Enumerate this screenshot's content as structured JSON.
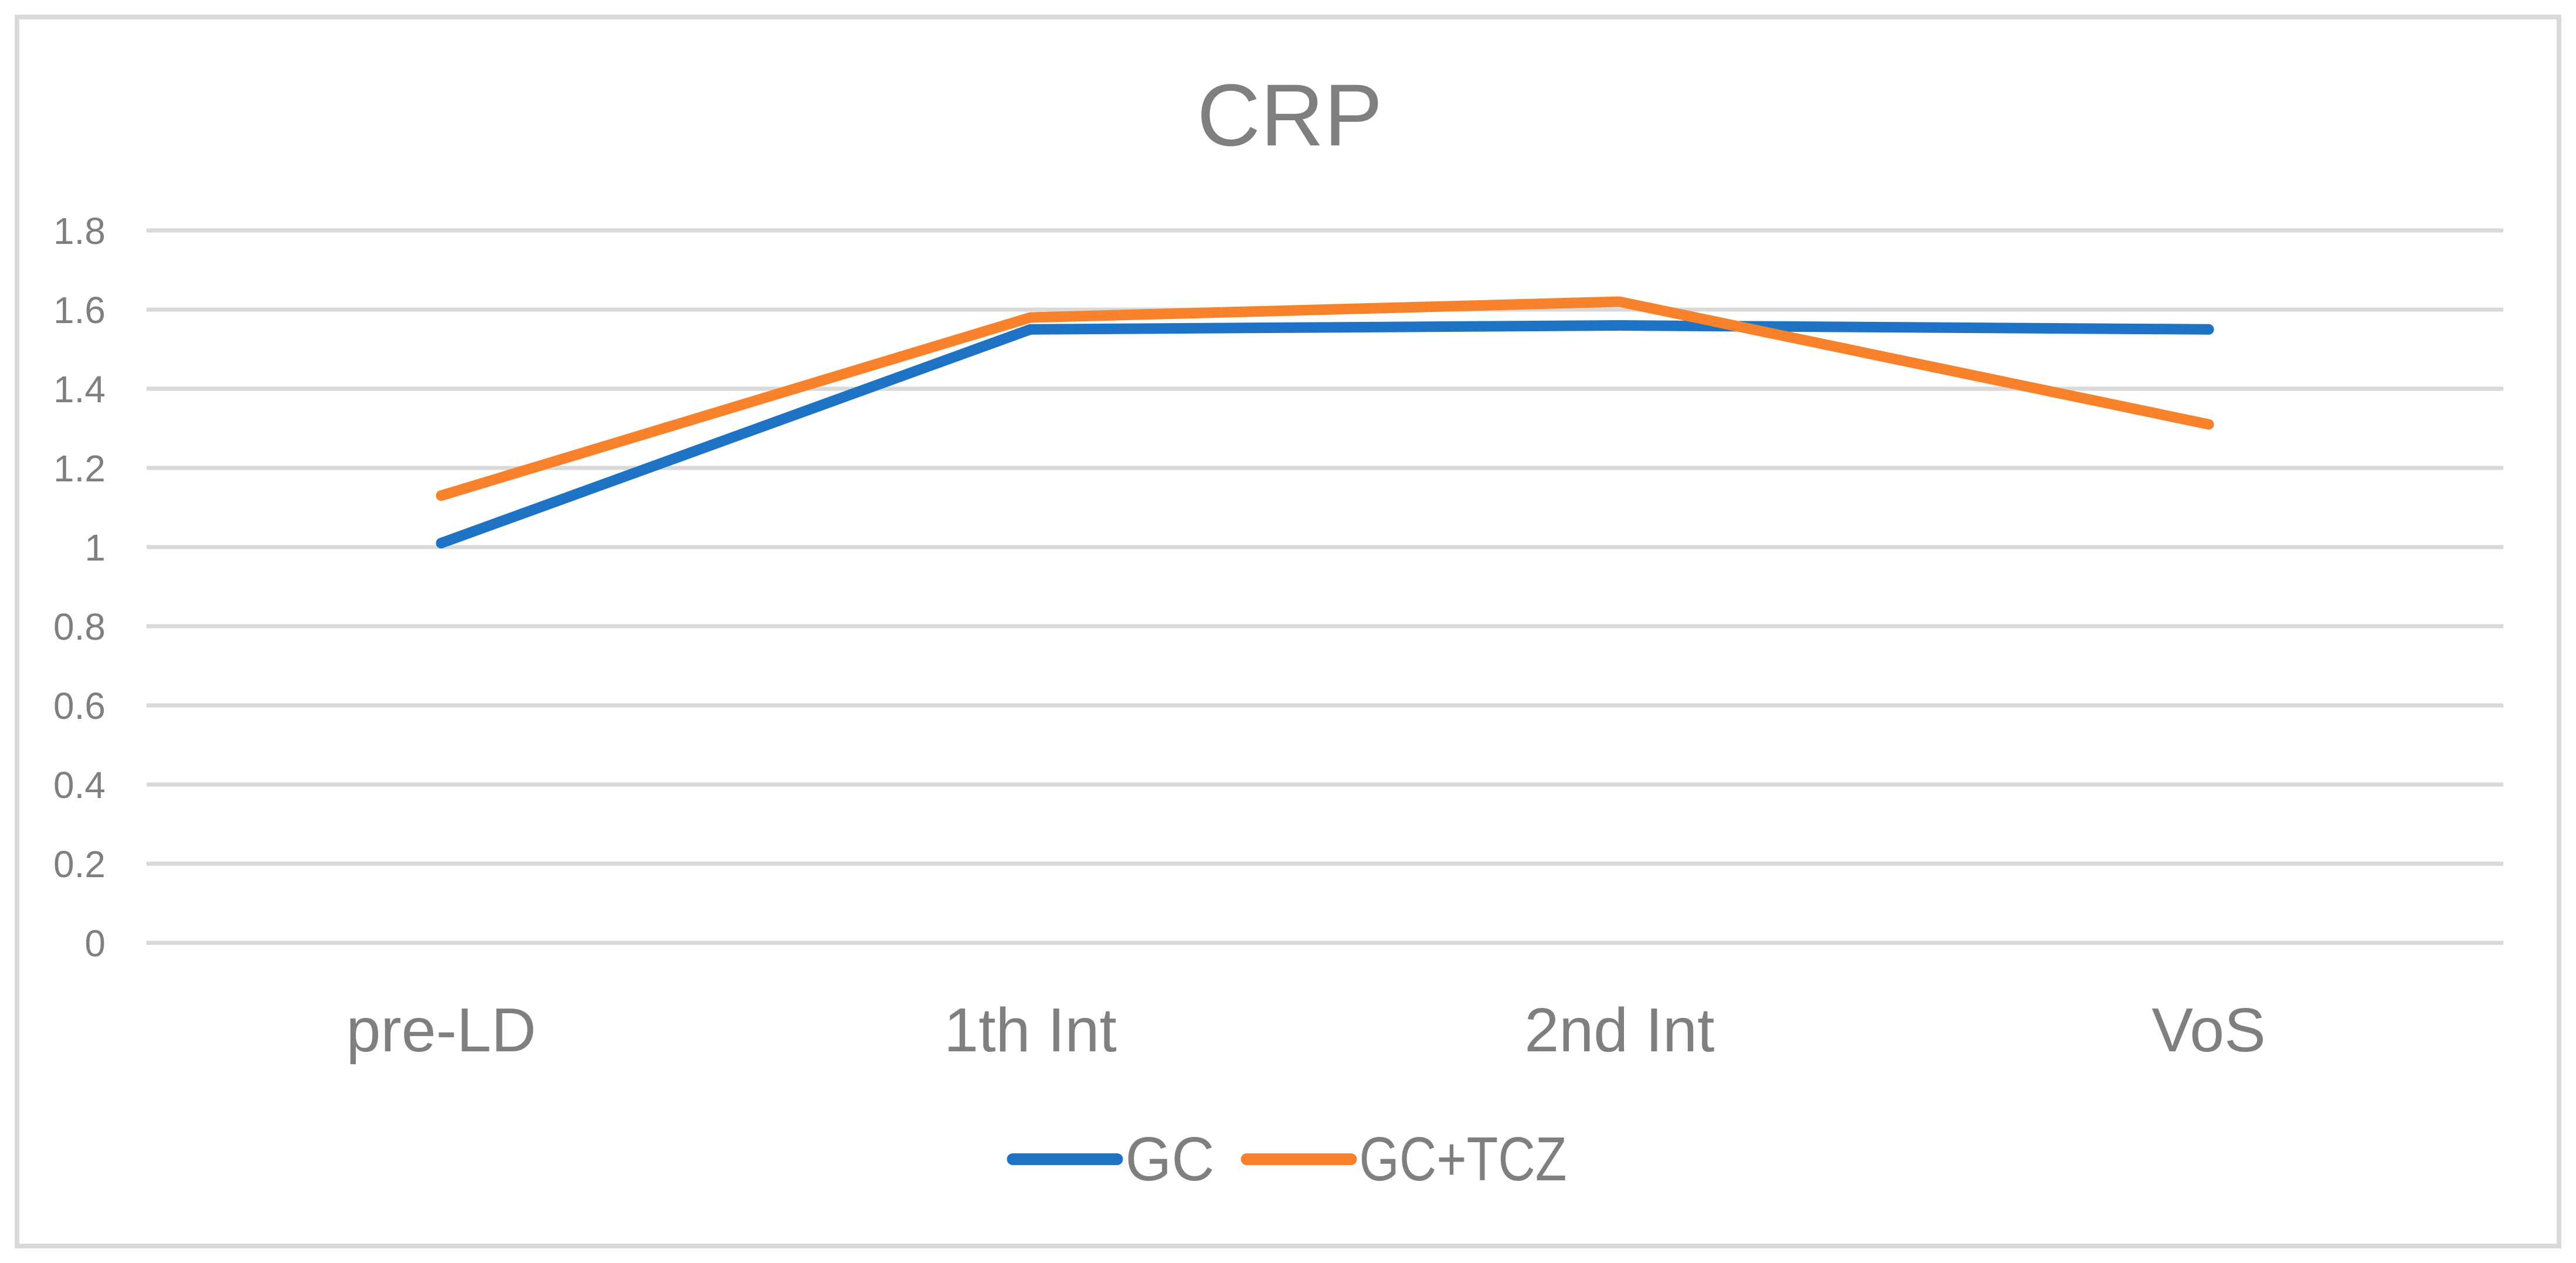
{
  "chart_data": {
    "type": "line",
    "title": "CRP",
    "categories": [
      "pre-LD",
      "1th Int",
      "2nd Int",
      "VoS"
    ],
    "series": [
      {
        "name": "GC",
        "color": "#1E73C4",
        "values": [
          1.01,
          1.55,
          1.56,
          1.55
        ]
      },
      {
        "name": "GC+TCZ",
        "color": "#F8822B",
        "values": [
          1.13,
          1.58,
          1.62,
          1.31
        ]
      }
    ],
    "y_axis": {
      "min": 0,
      "max": 1.8,
      "step": 0.2,
      "tick_labels": [
        "0",
        "0.2",
        "0.4",
        "0.6",
        "0.8",
        "1",
        "1.2",
        "1.4",
        "1.6",
        "1.8"
      ]
    },
    "x_axis_label": "",
    "y_axis_label": "",
    "grid": true,
    "legend_position": "bottom-center",
    "colors": {
      "grid": "#D9D9D9",
      "border": "#D9D9D9",
      "text": "#7F7F7F",
      "background": "#FFFFFF"
    }
  }
}
